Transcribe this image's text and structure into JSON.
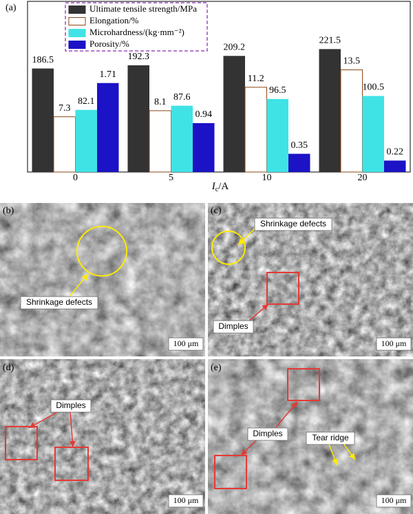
{
  "chart_data": {
    "type": "bar",
    "panel_label": "(a)",
    "categories": [
      "0",
      "5",
      "10",
      "20"
    ],
    "xlabel": [
      "I",
      "c",
      "/A"
    ],
    "series": [
      {
        "name": "Ultimate tensile strength/MPa",
        "color": "#333333",
        "values": [
          186.5,
          192.3,
          209.2,
          221.5
        ],
        "ylim": [
          0,
          300
        ]
      },
      {
        "name": "Elongation/%",
        "color": "#ffffff",
        "values": [
          7.3,
          8.1,
          11.2,
          13.5
        ],
        "ylim": [
          0,
          22
        ]
      },
      {
        "name": "Microhardness/(kg·mm⁻²)",
        "color": "#3fe3e6",
        "values": [
          82.1,
          87.6,
          96.5,
          100.5
        ],
        "ylim": [
          0,
          220
        ]
      },
      {
        "name": "Porosity/%",
        "color": "#1c12c6",
        "values": [
          1.71,
          0.94,
          0.35,
          0.22
        ],
        "ylim": [
          0,
          3.2
        ]
      }
    ]
  },
  "micrographs": [
    {
      "label": "(b)",
      "annotations": [
        "Shrinkage defects"
      ],
      "scale_bar": "100 μm"
    },
    {
      "label": "(c)",
      "annotations": [
        "Shrinkage defects",
        "Dimples"
      ],
      "scale_bar": "100 μm"
    },
    {
      "label": "(d)",
      "annotations": [
        "Dimples"
      ],
      "scale_bar": "100 μm"
    },
    {
      "label": "(e)",
      "annotations": [
        "Dimples",
        "Tear ridge"
      ],
      "scale_bar": "100 μm"
    }
  ]
}
